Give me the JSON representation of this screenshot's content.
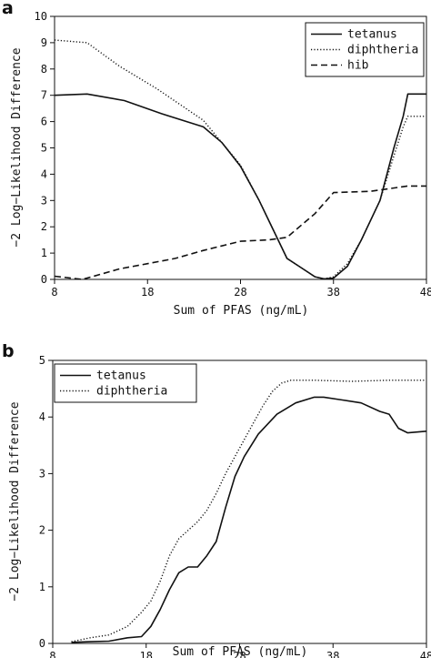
{
  "panels": [
    {
      "label": "a",
      "chart_data": {
        "type": "line",
        "title": "",
        "xlabel": "Sum of PFAS (ng/mL)",
        "ylabel": "−2 Log−Likelihood Difference",
        "xlim": [
          8,
          48
        ],
        "ylim": [
          0,
          10
        ],
        "xticks": [
          8,
          18,
          28,
          38,
          48
        ],
        "yticks": [
          0,
          1,
          2,
          3,
          4,
          5,
          6,
          7,
          8,
          9,
          10
        ],
        "legend_position": "top-right",
        "grid": false,
        "series": [
          {
            "name": "tetanus",
            "style": "solid",
            "color": "#111111",
            "points": [
              [
                8,
                7.0
              ],
              [
                11.5,
                7.05
              ],
              [
                15.5,
                6.8
              ],
              [
                19.5,
                6.3
              ],
              [
                24,
                5.8
              ],
              [
                26,
                5.2
              ],
              [
                28,
                4.3
              ],
              [
                30,
                3.0
              ],
              [
                31.5,
                1.9
              ],
              [
                33,
                0.8
              ],
              [
                34.5,
                0.45
              ],
              [
                36,
                0.1
              ],
              [
                37,
                0.02
              ],
              [
                38,
                0.05
              ],
              [
                39.5,
                0.5
              ],
              [
                41,
                1.5
              ],
              [
                43,
                3.0
              ],
              [
                44.5,
                5.0
              ],
              [
                45.5,
                6.2
              ],
              [
                46,
                7.05
              ],
              [
                48,
                7.05
              ]
            ]
          },
          {
            "name": "diphtheria",
            "style": "dotted",
            "color": "#111111",
            "points": [
              [
                8,
                9.1
              ],
              [
                11.5,
                9.0
              ],
              [
                15,
                8.1
              ],
              [
                19,
                7.25
              ],
              [
                24,
                6.05
              ],
              [
                28,
                4.35
              ],
              [
                30,
                3.0
              ],
              [
                31.5,
                1.9
              ],
              [
                33,
                0.8
              ],
              [
                34.5,
                0.45
              ],
              [
                36,
                0.1
              ],
              [
                37,
                0.02
              ],
              [
                38,
                0.1
              ],
              [
                39.5,
                0.6
              ],
              [
                41,
                1.5
              ],
              [
                43,
                3.0
              ],
              [
                44.5,
                4.7
              ],
              [
                45.5,
                5.8
              ],
              [
                46,
                6.2
              ],
              [
                48,
                6.2
              ]
            ]
          },
          {
            "name": "hib",
            "style": "dashed",
            "color": "#111111",
            "points": [
              [
                8,
                0.12
              ],
              [
                11,
                0.0
              ],
              [
                15,
                0.4
              ],
              [
                18,
                0.6
              ],
              [
                21,
                0.8
              ],
              [
                24,
                1.1
              ],
              [
                28,
                1.45
              ],
              [
                31,
                1.5
              ],
              [
                33,
                1.6
              ],
              [
                36,
                2.5
              ],
              [
                38,
                3.3
              ],
              [
                42,
                3.35
              ],
              [
                46,
                3.55
              ],
              [
                48,
                3.55
              ]
            ]
          }
        ]
      }
    },
    {
      "label": "b",
      "chart_data": {
        "type": "line",
        "title": "",
        "xlabel": "Sum of PFAS (ng/mL)",
        "ylabel": "−2 Log−Likelihood Difference",
        "xlim": [
          8,
          48
        ],
        "ylim": [
          0,
          5
        ],
        "xticks": [
          8,
          18,
          28,
          38,
          48
        ],
        "yticks": [
          0,
          1,
          2,
          3,
          4,
          5
        ],
        "legend_position": "top-left",
        "grid": false,
        "series": [
          {
            "name": "tetanus",
            "style": "solid",
            "color": "#111111",
            "points": [
              [
                10,
                0.02
              ],
              [
                12,
                0.03
              ],
              [
                14,
                0.04
              ],
              [
                16,
                0.1
              ],
              [
                17.5,
                0.12
              ],
              [
                18.5,
                0.3
              ],
              [
                19.5,
                0.6
              ],
              [
                20.5,
                0.95
              ],
              [
                21.5,
                1.25
              ],
              [
                22.5,
                1.35
              ],
              [
                23.5,
                1.35
              ],
              [
                24.5,
                1.55
              ],
              [
                25.5,
                1.8
              ],
              [
                26.5,
                2.4
              ],
              [
                27.5,
                2.95
              ],
              [
                28.5,
                3.3
              ],
              [
                30,
                3.7
              ],
              [
                32,
                4.05
              ],
              [
                34,
                4.25
              ],
              [
                36,
                4.35
              ],
              [
                37,
                4.35
              ],
              [
                39,
                4.3
              ],
              [
                41,
                4.25
              ],
              [
                43,
                4.1
              ],
              [
                44,
                4.05
              ],
              [
                45,
                3.8
              ],
              [
                46,
                3.72
              ],
              [
                48,
                3.75
              ]
            ]
          },
          {
            "name": "diphtheria",
            "style": "dotted",
            "color": "#111111",
            "points": [
              [
                10,
                0.03
              ],
              [
                12,
                0.1
              ],
              [
                14,
                0.15
              ],
              [
                16,
                0.3
              ],
              [
                17.5,
                0.55
              ],
              [
                18.5,
                0.75
              ],
              [
                19.5,
                1.1
              ],
              [
                20.5,
                1.55
              ],
              [
                21.5,
                1.85
              ],
              [
                22.5,
                2.0
              ],
              [
                23.5,
                2.15
              ],
              [
                24.5,
                2.35
              ],
              [
                25.5,
                2.65
              ],
              [
                26.5,
                3.0
              ],
              [
                27.5,
                3.3
              ],
              [
                28.5,
                3.6
              ],
              [
                29.5,
                3.9
              ],
              [
                30.5,
                4.2
              ],
              [
                31.5,
                4.45
              ],
              [
                32.5,
                4.6
              ],
              [
                33.5,
                4.65
              ],
              [
                36,
                4.65
              ],
              [
                40,
                4.63
              ],
              [
                44,
                4.65
              ],
              [
                48,
                4.65
              ]
            ]
          }
        ]
      }
    }
  ]
}
